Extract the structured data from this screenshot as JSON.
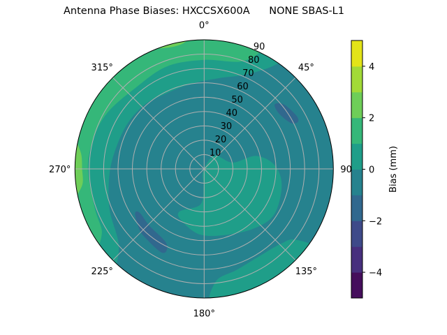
{
  "chart_data": {
    "type": "polar-contour",
    "title": "Antenna Phase Biases: HXCCSX600A      NONE SBAS-L1",
    "angular_axis": {
      "direction": "clockwise",
      "zero_location": "top",
      "tick_labels": [
        "0°",
        "45°",
        "90°",
        "135°",
        "180°",
        "225°",
        "270°",
        "315°"
      ],
      "tick_values": [
        0,
        45,
        90,
        135,
        180,
        225,
        270,
        315
      ]
    },
    "radial_axis": {
      "range": [
        0,
        90
      ],
      "tick_values": [
        10,
        20,
        30,
        40,
        50,
        60,
        70,
        80,
        90
      ],
      "tick_labels": [
        "10",
        "20",
        "30",
        "40",
        "50",
        "60",
        "70",
        "80",
        "90"
      ]
    },
    "grid": true,
    "colorbar": {
      "label": "Bias (mm)",
      "colormap": "viridis",
      "levels": [
        -5,
        -4,
        -3,
        -2,
        -1,
        0,
        1,
        2,
        3,
        4,
        5
      ],
      "level_colors": [
        "#450e5c",
        "#472f7d",
        "#3e4a89",
        "#31688e",
        "#26828e",
        "#1f9e89",
        "#35b779",
        "#6ece58",
        "#a2da37",
        "#e3e418"
      ],
      "tick_values": [
        -4,
        -2,
        0,
        2,
        4
      ],
      "tick_labels": [
        "−4",
        "−2",
        "0",
        "2",
        "4"
      ],
      "placement": "right"
    },
    "background_level": [
      -1,
      0
    ],
    "regions": [
      {
        "level": [
          0,
          1
        ],
        "color": "#1f9e89",
        "points": [
          [
            34,
            95
          ],
          [
            34,
            87
          ],
          [
            24,
            72
          ],
          [
            9,
            64
          ],
          [
            351,
            60
          ],
          [
            331,
            59
          ],
          [
            317,
            61
          ],
          [
            301,
            62
          ],
          [
            284,
            63
          ],
          [
            267,
            66
          ],
          [
            247,
            71.6
          ],
          [
            229,
            79
          ],
          [
            222,
            92
          ],
          [
            222,
            98
          ],
          [
            250,
            98
          ],
          [
            280,
            98
          ],
          [
            310,
            98
          ],
          [
            340,
            98
          ],
          [
            10,
            98
          ]
        ]
      },
      {
        "level": [
          1,
          2
        ],
        "color": "#35b779",
        "points": [
          [
            25,
            96
          ],
          [
            20,
            80
          ],
          [
            0,
            76
          ],
          [
            340,
            76
          ],
          [
            320,
            74
          ],
          [
            300,
            78
          ],
          [
            285,
            80
          ],
          [
            270,
            81
          ],
          [
            250,
            81
          ],
          [
            238,
            84
          ],
          [
            234,
            96
          ],
          [
            250,
            99
          ],
          [
            280,
            99
          ],
          [
            310,
            99
          ],
          [
            340,
            99
          ],
          [
            5,
            99
          ]
        ]
      },
      {
        "level": [
          2,
          3
        ],
        "color": "#6ece58",
        "points": [
          [
            284,
            96
          ],
          [
            278,
            87
          ],
          [
            270,
            85
          ],
          [
            262,
            86
          ],
          [
            257,
            96
          ],
          [
            270,
            99
          ]
        ]
      },
      {
        "level": [
          2,
          3
        ],
        "color": "#6ece58",
        "points": [
          [
            335,
            96
          ],
          [
            340,
            89.5
          ],
          [
            350,
            88.5
          ],
          [
            356,
            96
          ],
          [
            345,
            99
          ]
        ]
      },
      {
        "level": [
          0,
          1
        ],
        "color": "#1f9e89",
        "points": [
          [
            200,
            2
          ],
          [
            37,
            11.6
          ],
          [
            77.5,
            20.4
          ],
          [
            76,
            37.3
          ],
          [
            87,
            49.2
          ],
          [
            102,
            55.2
          ],
          [
            122.5,
            58.2
          ],
          [
            138.6,
            54.6
          ],
          [
            160,
            48.8
          ],
          [
            183.5,
            45.9
          ],
          [
            203.5,
            39.4
          ],
          [
            210,
            34.3
          ],
          [
            186,
            25
          ],
          [
            182,
            11.8
          ]
        ]
      },
      {
        "level": [
          0,
          1
        ],
        "color": "#1f9e89",
        "points": [
          [
            126,
            96
          ],
          [
            128,
            80
          ],
          [
            134.6,
            74.6
          ],
          [
            147,
            72
          ],
          [
            162,
            73.9
          ],
          [
            174,
            78.7
          ],
          [
            177,
            96
          ],
          [
            160,
            99
          ],
          [
            140,
            99
          ]
        ]
      },
      {
        "level": [
          -2,
          -1
        ],
        "color": "#31688e",
        "points": [
          [
            47.6,
            66.5
          ],
          [
            51,
            71.4
          ],
          [
            60,
            74.2
          ],
          [
            63.4,
            73
          ],
          [
            62,
            68.3
          ],
          [
            53.7,
            64.9
          ]
        ]
      },
      {
        "level": [
          -2,
          -1
        ],
        "color": "#31688e",
        "points": [
          [
            237,
            57.4
          ],
          [
            235.8,
            54.3
          ],
          [
            224,
            55
          ],
          [
            208,
            57.5
          ],
          [
            204.7,
            62.9
          ],
          [
            207.6,
            65.4
          ],
          [
            219,
            63.3
          ],
          [
            226.5,
            61.9
          ]
        ]
      }
    ]
  }
}
